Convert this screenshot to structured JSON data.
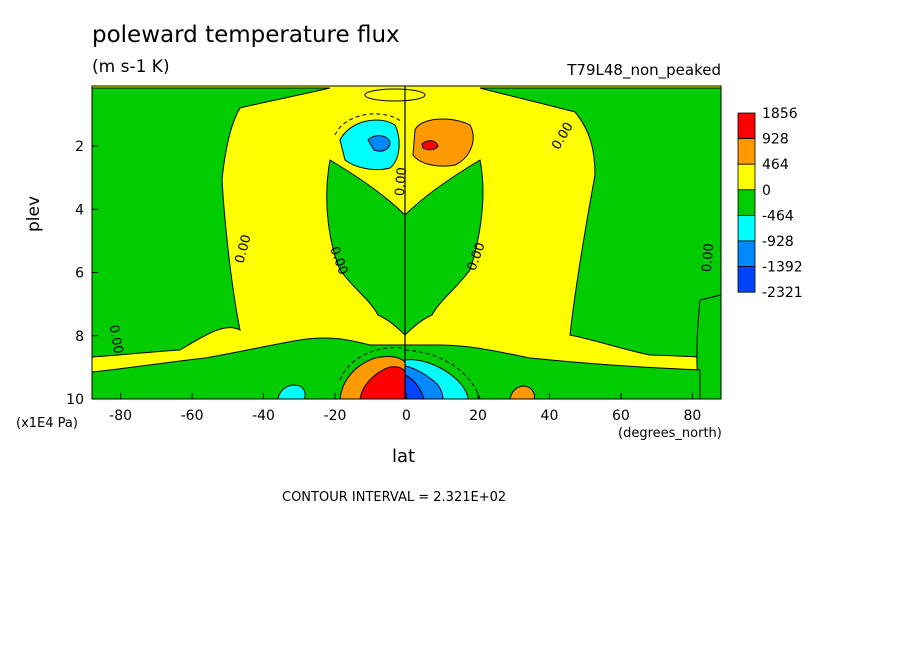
{
  "chart_data": {
    "type": "heatmap",
    "title": "poleward temperature flux",
    "units": "(m s-1 K)",
    "run_label": "T79L48_non_peaked",
    "xlabel": "lat",
    "ylabel": "plev",
    "x_units": "(degrees_north)",
    "y_units": "(x1E4 Pa)",
    "xlim": [
      -88,
      88
    ],
    "ylim": [
      0.1,
      10
    ],
    "y_inverted": true,
    "x_ticks": [
      -80,
      -60,
      -40,
      -20,
      0,
      20,
      40,
      60,
      80
    ],
    "y_ticks": [
      2,
      4,
      6,
      8,
      10
    ],
    "contour_interval_text": "CONTOUR INTERVAL = 2.321E+02",
    "contour_labels": [
      "0.00",
      "0.00",
      "0.00",
      "0.00",
      "0.00",
      "0.00",
      "0.00"
    ],
    "colorbar": {
      "labels": [
        "1856",
        "928",
        "464",
        "0",
        "-464",
        "-928",
        "-1392",
        "-2321"
      ],
      "colors": [
        "#ff0000",
        "#ff9900",
        "#ffff00",
        "#00cc00",
        "#00ffff",
        "#0088ff",
        "#0044ff"
      ]
    }
  }
}
